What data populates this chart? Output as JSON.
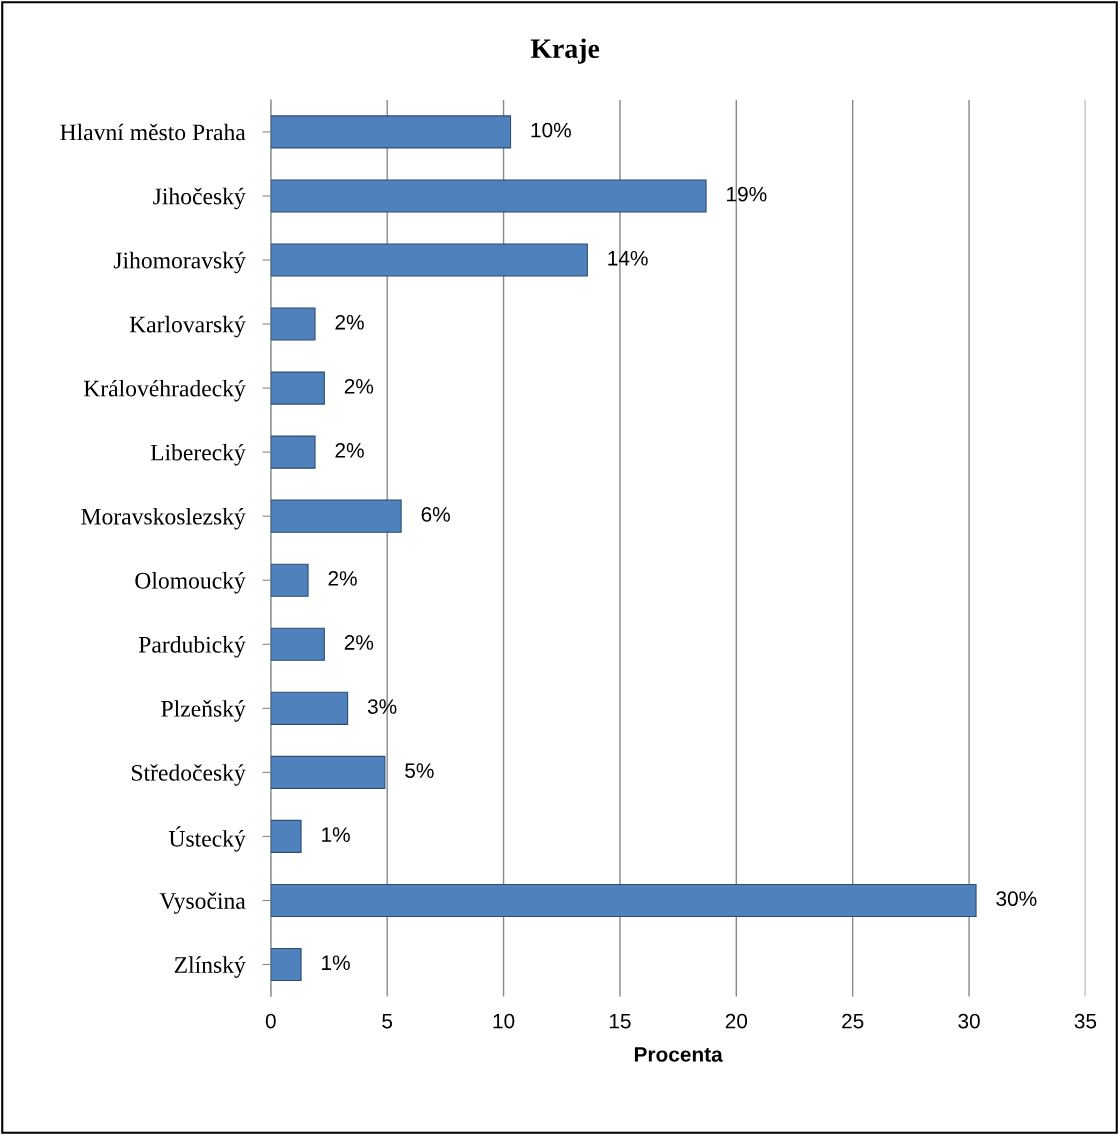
{
  "chart_data": {
    "type": "bar",
    "orientation": "horizontal",
    "title": "Kraje",
    "xlabel": "Procenta",
    "categories": [
      "Hlavní město Praha",
      "Jihočeský",
      "Jihomoravský",
      "Karlovarský",
      "Královéhradecký",
      "Liberecký",
      "Moravskoslezský",
      "Olomoucký",
      "Pardubický",
      "Plzeňský",
      "Středočeský",
      "Ústecký",
      "Vysočina",
      "Zlínský"
    ],
    "values": [
      10.3,
      18.7,
      13.6,
      1.9,
      2.3,
      1.9,
      5.6,
      1.6,
      2.3,
      3.3,
      4.9,
      1.3,
      30.3,
      1.3
    ],
    "value_labels": [
      "10%",
      "19%",
      "14%",
      "2%",
      "2%",
      "2%",
      "6%",
      "2%",
      "2%",
      "3%",
      "5%",
      "1%",
      "30%",
      "1%"
    ],
    "color": "#4f81bd",
    "xlim": [
      0,
      35
    ],
    "xticks": [
      0,
      5,
      10,
      15,
      20,
      25,
      30,
      35
    ],
    "grid": "x",
    "legend": false
  }
}
